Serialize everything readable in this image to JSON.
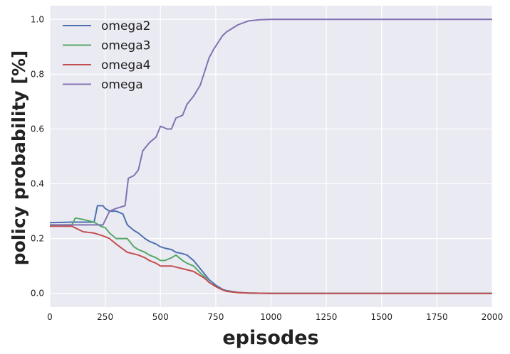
{
  "chart_data": {
    "type": "line",
    "title": "",
    "xlabel": "episodes",
    "ylabel": "policy probability [%]",
    "xlim": [
      0,
      2000
    ],
    "ylim": [
      -0.05,
      1.05
    ],
    "xticks": [
      0,
      250,
      500,
      750,
      1000,
      1250,
      1500,
      1750,
      2000
    ],
    "xtick_labels": [
      "0",
      "250",
      "500",
      "750",
      "1000",
      "1250",
      "1500",
      "1750",
      "2000"
    ],
    "yticks": [
      0.0,
      0.2,
      0.4,
      0.6,
      0.8,
      1.0
    ],
    "ytick_labels": [
      "0.0",
      "0.2",
      "0.4",
      "0.6",
      "0.8",
      "1.0"
    ],
    "grid": true,
    "legend_position": "top-left",
    "background_color": "#eaeaf2",
    "series": [
      {
        "name": "omega2",
        "color": "#4c72b0",
        "x": [
          0,
          100,
          150,
          200,
          215,
          240,
          250,
          270,
          280,
          300,
          330,
          350,
          380,
          400,
          430,
          450,
          480,
          500,
          520,
          550,
          570,
          600,
          620,
          650,
          680,
          700,
          720,
          750,
          780,
          800,
          850,
          900,
          1000,
          1250,
          1500,
          2000
        ],
        "values": [
          0.258,
          0.26,
          0.26,
          0.26,
          0.32,
          0.32,
          0.31,
          0.3,
          0.3,
          0.3,
          0.29,
          0.25,
          0.23,
          0.22,
          0.2,
          0.19,
          0.18,
          0.17,
          0.165,
          0.16,
          0.15,
          0.145,
          0.14,
          0.12,
          0.09,
          0.07,
          0.05,
          0.03,
          0.015,
          0.01,
          0.004,
          0.001,
          0,
          0,
          0,
          0
        ]
      },
      {
        "name": "omega3",
        "color": "#55a868",
        "x": [
          0,
          100,
          115,
          150,
          200,
          230,
          250,
          270,
          300,
          350,
          380,
          400,
          430,
          450,
          480,
          500,
          520,
          550,
          570,
          600,
          620,
          650,
          680,
          700,
          720,
          750,
          780,
          800,
          850,
          900,
          1000,
          1250,
          1500,
          2000
        ],
        "values": [
          0.25,
          0.25,
          0.275,
          0.27,
          0.26,
          0.245,
          0.24,
          0.22,
          0.2,
          0.2,
          0.17,
          0.16,
          0.15,
          0.14,
          0.13,
          0.12,
          0.12,
          0.13,
          0.14,
          0.12,
          0.11,
          0.1,
          0.075,
          0.06,
          0.04,
          0.025,
          0.013,
          0.008,
          0.003,
          0.001,
          0,
          0,
          0,
          0
        ]
      },
      {
        "name": "omega4",
        "color": "#c44e52",
        "x": [
          0,
          100,
          150,
          200,
          240,
          270,
          300,
          350,
          400,
          430,
          450,
          480,
          500,
          550,
          600,
          650,
          700,
          720,
          750,
          780,
          800,
          850,
          900,
          1000,
          1250,
          1500,
          2000
        ],
        "values": [
          0.245,
          0.245,
          0.225,
          0.22,
          0.21,
          0.2,
          0.18,
          0.15,
          0.14,
          0.13,
          0.12,
          0.11,
          0.1,
          0.1,
          0.09,
          0.08,
          0.055,
          0.04,
          0.025,
          0.013,
          0.007,
          0.003,
          0.001,
          0,
          0,
          0,
          0
        ]
      },
      {
        "name": "omega",
        "color": "#8172b2",
        "x": [
          0,
          100,
          200,
          240,
          270,
          300,
          340,
          355,
          380,
          400,
          420,
          450,
          480,
          500,
          530,
          550,
          570,
          600,
          620,
          650,
          680,
          700,
          720,
          740,
          760,
          780,
          800,
          850,
          900,
          950,
          1000,
          1250,
          1500,
          2000
        ],
        "values": [
          0.25,
          0.25,
          0.25,
          0.25,
          0.3,
          0.31,
          0.32,
          0.42,
          0.43,
          0.45,
          0.52,
          0.55,
          0.57,
          0.61,
          0.6,
          0.6,
          0.64,
          0.65,
          0.69,
          0.72,
          0.76,
          0.81,
          0.86,
          0.89,
          0.915,
          0.94,
          0.955,
          0.98,
          0.995,
          0.999,
          1.0,
          1.0,
          1.0,
          1.0
        ]
      }
    ]
  }
}
